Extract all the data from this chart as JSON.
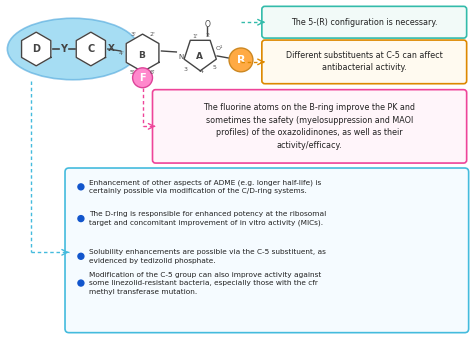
{
  "bg_color": "#ffffff",
  "box1_text": "The 5-(R) configuration is necessary.",
  "box1_color": "#33bbaa",
  "box1_bg": "#f2faf8",
  "box2_text": "Different substituents at C-5 can affect\nantibacterial activity.",
  "box2_color": "#dd8800",
  "box2_bg": "#fffaf0",
  "box3_text": "The fluorine atoms on the B-ring improve the PK and\nsometimes the safety (myelosuppression and MAOI\nprofiles) of the oxazolidinones, as well as their\nactivity/efficacy.",
  "box3_color": "#ee4499",
  "box3_bg": "#fff5fa",
  "box4_bullets": [
    "Enhancement of other aspects of ADME (e.g. longer half-life) is\ncertainly possible via modification of the C/D-ring systems.",
    "The D-ring is responsible for enhanced potency at the ribosomal\ntarget and concomitant improvement of in vitro activity (MICs).",
    "Solubility enhancements are possible via the C-5 substituent, as\nevidenced by tedizolid phosphate.",
    "Modification of the C-5 group can also improve activity against\nsome linezolid-resistant bacteria, especially those with the cfr\nmethyl transferase mutation."
  ],
  "box4_color": "#44bbdd",
  "box4_bg": "#f5fbff",
  "bullet_color": "#1155cc",
  "ellipse_color": "#77ccee",
  "ellipse_edge": "#55aadd",
  "F_color": "#ff88cc",
  "F_edge": "#dd4499",
  "R_color": "#ffaa44",
  "R_edge": "#cc8822",
  "struct_color": "#444444",
  "num_color": "#555555",
  "arrow_green": "#33bbaa",
  "arrow_orange": "#dd8800",
  "arrow_pink": "#ee4499",
  "arrow_blue": "#44bbdd"
}
